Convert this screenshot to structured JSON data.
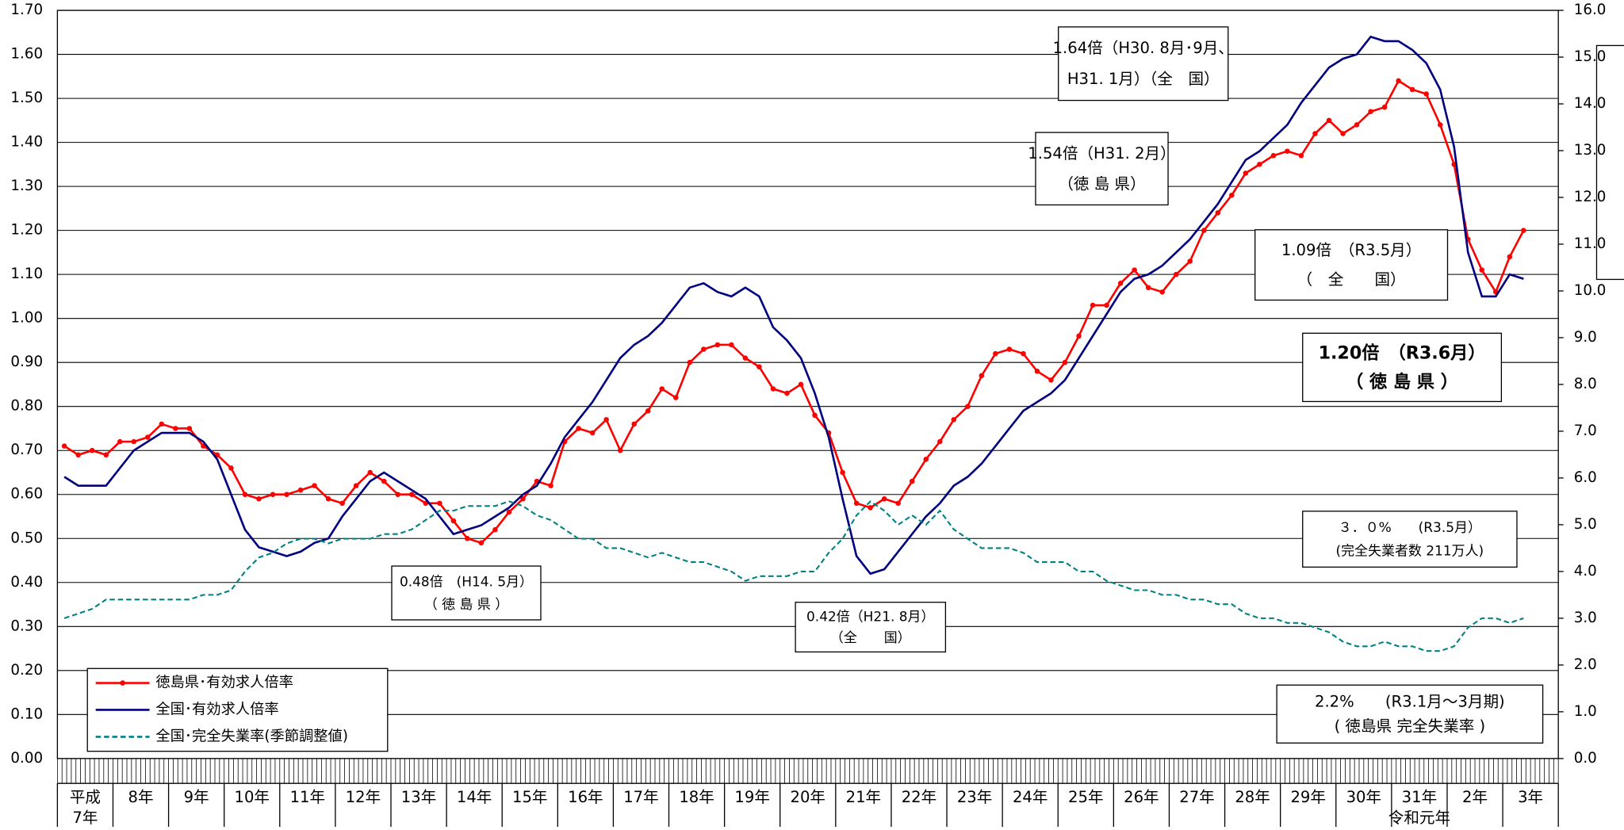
{
  "chart_data": {
    "type": "line",
    "year_labels": [
      [
        "平成",
        "7年"
      ],
      [
        "8年"
      ],
      [
        "9年"
      ],
      [
        "10年"
      ],
      [
        "11年"
      ],
      [
        "12年"
      ],
      [
        "13年"
      ],
      [
        "14年"
      ],
      [
        "15年"
      ],
      [
        "16年"
      ],
      [
        "17年"
      ],
      [
        "18年"
      ],
      [
        "19年"
      ],
      [
        "20年"
      ],
      [
        "21年"
      ],
      [
        "22年"
      ],
      [
        "23年"
      ],
      [
        "24年"
      ],
      [
        "25年"
      ],
      [
        "26年"
      ],
      [
        "27年"
      ],
      [
        "28年"
      ],
      [
        "29年"
      ],
      [
        "30年"
      ],
      [
        "31年",
        "令和元年"
      ],
      [
        "2年"
      ],
      [
        "3年"
      ]
    ],
    "ylim": [
      0,
      1.7
    ],
    "yticks": [
      {
        "value": 0,
        "label": "0.00"
      },
      {
        "value": 0.1,
        "label": "0.10"
      },
      {
        "value": 0.2,
        "label": "0.20"
      },
      {
        "value": 0.3,
        "label": "0.30"
      },
      {
        "value": 0.4,
        "label": "0.40"
      },
      {
        "value": 0.5,
        "label": "0.50"
      },
      {
        "value": 0.6,
        "label": "0.60"
      },
      {
        "value": 0.7,
        "label": "0.70"
      },
      {
        "value": 0.8,
        "label": "0.80"
      },
      {
        "value": 0.9,
        "label": "0.90"
      },
      {
        "value": 1.0,
        "label": "1.00"
      },
      {
        "value": 1.1,
        "label": "1.10"
      },
      {
        "value": 1.2,
        "label": "1.20"
      },
      {
        "value": 1.3,
        "label": "1.30"
      },
      {
        "value": 1.4,
        "label": "1.40"
      },
      {
        "value": 1.5,
        "label": "1.50"
      },
      {
        "value": 1.6,
        "label": "1.60"
      },
      {
        "value": 1.7,
        "label": "1.70"
      }
    ],
    "y2lim": [
      0,
      16
    ],
    "y2ticks": [
      {
        "value": 0,
        "label": "0.0"
      },
      {
        "value": 1,
        "label": "1.0"
      },
      {
        "value": 2,
        "label": "2.0"
      },
      {
        "value": 3,
        "label": "3.0"
      },
      {
        "value": 4,
        "label": "4.0"
      },
      {
        "value": 5,
        "label": "5.0"
      },
      {
        "value": 6,
        "label": "6.0"
      },
      {
        "value": 7,
        "label": "7.0"
      },
      {
        "value": 8,
        "label": "8.0"
      },
      {
        "value": 9,
        "label": "9.0"
      },
      {
        "value": 10,
        "label": "10.0"
      },
      {
        "value": 11,
        "label": "11.0"
      },
      {
        "value": 12,
        "label": "12.0"
      },
      {
        "value": 13,
        "label": "13.0"
      },
      {
        "value": 14,
        "label": "14.0"
      },
      {
        "value": 15,
        "label": "15.0"
      },
      {
        "value": 16,
        "label": "16.0"
      }
    ],
    "grid": true,
    "series": [
      {
        "name": "徳島県･有効求人倍率",
        "color": "#ff0000",
        "marker": true,
        "dashed": false,
        "values": [
          0.71,
          0.69,
          0.7,
          0.69,
          0.72,
          0.72,
          0.73,
          0.76,
          0.75,
          0.75,
          0.71,
          0.69,
          0.66,
          0.6,
          0.59,
          0.6,
          0.6,
          0.61,
          0.62,
          0.59,
          0.58,
          0.62,
          0.65,
          0.63,
          0.6,
          0.6,
          0.58,
          0.58,
          0.54,
          0.5,
          0.49,
          0.52,
          0.56,
          0.59,
          0.63,
          0.62,
          0.72,
          0.75,
          0.74,
          0.77,
          0.7,
          0.76,
          0.79,
          0.84,
          0.82,
          0.9,
          0.93,
          0.94,
          0.94,
          0.91,
          0.89,
          0.84,
          0.83,
          0.85,
          0.78,
          0.74,
          0.65,
          0.58,
          0.57,
          0.59,
          0.58,
          0.63,
          0.68,
          0.72,
          0.77,
          0.8,
          0.87,
          0.92,
          0.93,
          0.92,
          0.88,
          0.86,
          0.9,
          0.96,
          1.03,
          1.03,
          1.08,
          1.11,
          1.07,
          1.06,
          1.1,
          1.13,
          1.2,
          1.24,
          1.28,
          1.33,
          1.35,
          1.37,
          1.38,
          1.37,
          1.42,
          1.45,
          1.42,
          1.44,
          1.47,
          1.48,
          1.54,
          1.52,
          1.51,
          1.44,
          1.35,
          1.18,
          1.11,
          1.06,
          1.14,
          1.2
        ]
      },
      {
        "name": "全国･有効求人倍率",
        "color": "#000080",
        "marker": false,
        "dashed": false,
        "values": [
          0.64,
          0.62,
          0.62,
          0.62,
          0.66,
          0.7,
          0.72,
          0.74,
          0.74,
          0.74,
          0.72,
          0.68,
          0.6,
          0.52,
          0.48,
          0.47,
          0.46,
          0.47,
          0.49,
          0.5,
          0.55,
          0.59,
          0.63,
          0.65,
          0.63,
          0.61,
          0.59,
          0.55,
          0.51,
          0.52,
          0.53,
          0.55,
          0.57,
          0.6,
          0.62,
          0.67,
          0.73,
          0.77,
          0.81,
          0.86,
          0.91,
          0.94,
          0.96,
          0.99,
          1.03,
          1.07,
          1.08,
          1.06,
          1.05,
          1.07,
          1.05,
          0.98,
          0.95,
          0.91,
          0.83,
          0.73,
          0.59,
          0.46,
          0.42,
          0.43,
          0.47,
          0.51,
          0.55,
          0.58,
          0.62,
          0.64,
          0.67,
          0.71,
          0.75,
          0.79,
          0.81,
          0.83,
          0.86,
          0.91,
          0.96,
          1.01,
          1.06,
          1.09,
          1.1,
          1.12,
          1.15,
          1.18,
          1.22,
          1.26,
          1.31,
          1.36,
          1.38,
          1.41,
          1.44,
          1.49,
          1.53,
          1.57,
          1.59,
          1.6,
          1.64,
          1.63,
          1.63,
          1.61,
          1.58,
          1.52,
          1.39,
          1.15,
          1.05,
          1.05,
          1.1,
          1.09
        ]
      },
      {
        "name": "全国･完全失業率(季節調整値)",
        "color": "#008080",
        "marker": false,
        "dashed": true,
        "axis": "y2",
        "values": [
          3.0,
          3.1,
          3.2,
          3.4,
          3.4,
          3.4,
          3.4,
          3.4,
          3.4,
          3.4,
          3.5,
          3.5,
          3.6,
          4.0,
          4.3,
          4.4,
          4.6,
          4.7,
          4.7,
          4.6,
          4.7,
          4.7,
          4.7,
          4.8,
          4.8,
          4.9,
          5.1,
          5.3,
          5.3,
          5.4,
          5.4,
          5.4,
          5.5,
          5.4,
          5.2,
          5.1,
          4.9,
          4.7,
          4.7,
          4.5,
          4.5,
          4.4,
          4.3,
          4.4,
          4.3,
          4.2,
          4.2,
          4.1,
          4.0,
          3.8,
          3.9,
          3.9,
          3.9,
          4.0,
          4.0,
          4.4,
          4.7,
          5.2,
          5.5,
          5.3,
          5.0,
          5.2,
          5.0,
          5.3,
          4.9,
          4.7,
          4.5,
          4.5,
          4.5,
          4.4,
          4.2,
          4.2,
          4.2,
          4.0,
          4.0,
          3.8,
          3.7,
          3.6,
          3.6,
          3.5,
          3.5,
          3.4,
          3.4,
          3.3,
          3.3,
          3.1,
          3.0,
          3.0,
          2.9,
          2.9,
          2.8,
          2.7,
          2.5,
          2.4,
          2.4,
          2.5,
          2.4,
          2.4,
          2.3,
          2.3,
          2.4,
          2.8,
          3.0,
          3.0,
          2.9,
          3.0
        ]
      }
    ],
    "annotations": [
      {
        "lines": [
          "1.64倍（H30. 8月･9月、",
          "H31. 1月）（全　国）"
        ]
      },
      {
        "lines": [
          "1.54倍（H31. 2月）",
          "（徳 島 県）"
        ]
      },
      {
        "lines": [
          "1.09倍　（R3.5月）",
          "（　全　　国）"
        ]
      },
      {
        "lines": [
          "1.20倍　（R3.6月）",
          "（ 徳 島 県 ）"
        ]
      },
      {
        "lines": [
          "0.48倍　(H14. 5月）",
          "（ 徳 島 県 ）"
        ]
      },
      {
        "lines": [
          "0.42倍（H21. 8月）",
          "（全　　国）"
        ]
      },
      {
        "lines": [
          "３．０%　　(R3.5月）",
          "(完全失業者数 211万人)"
        ]
      },
      {
        "lines": [
          "2.2%　　(R3.1月～3月期)",
          "( 徳島県 完全失業率 )"
        ]
      }
    ]
  }
}
